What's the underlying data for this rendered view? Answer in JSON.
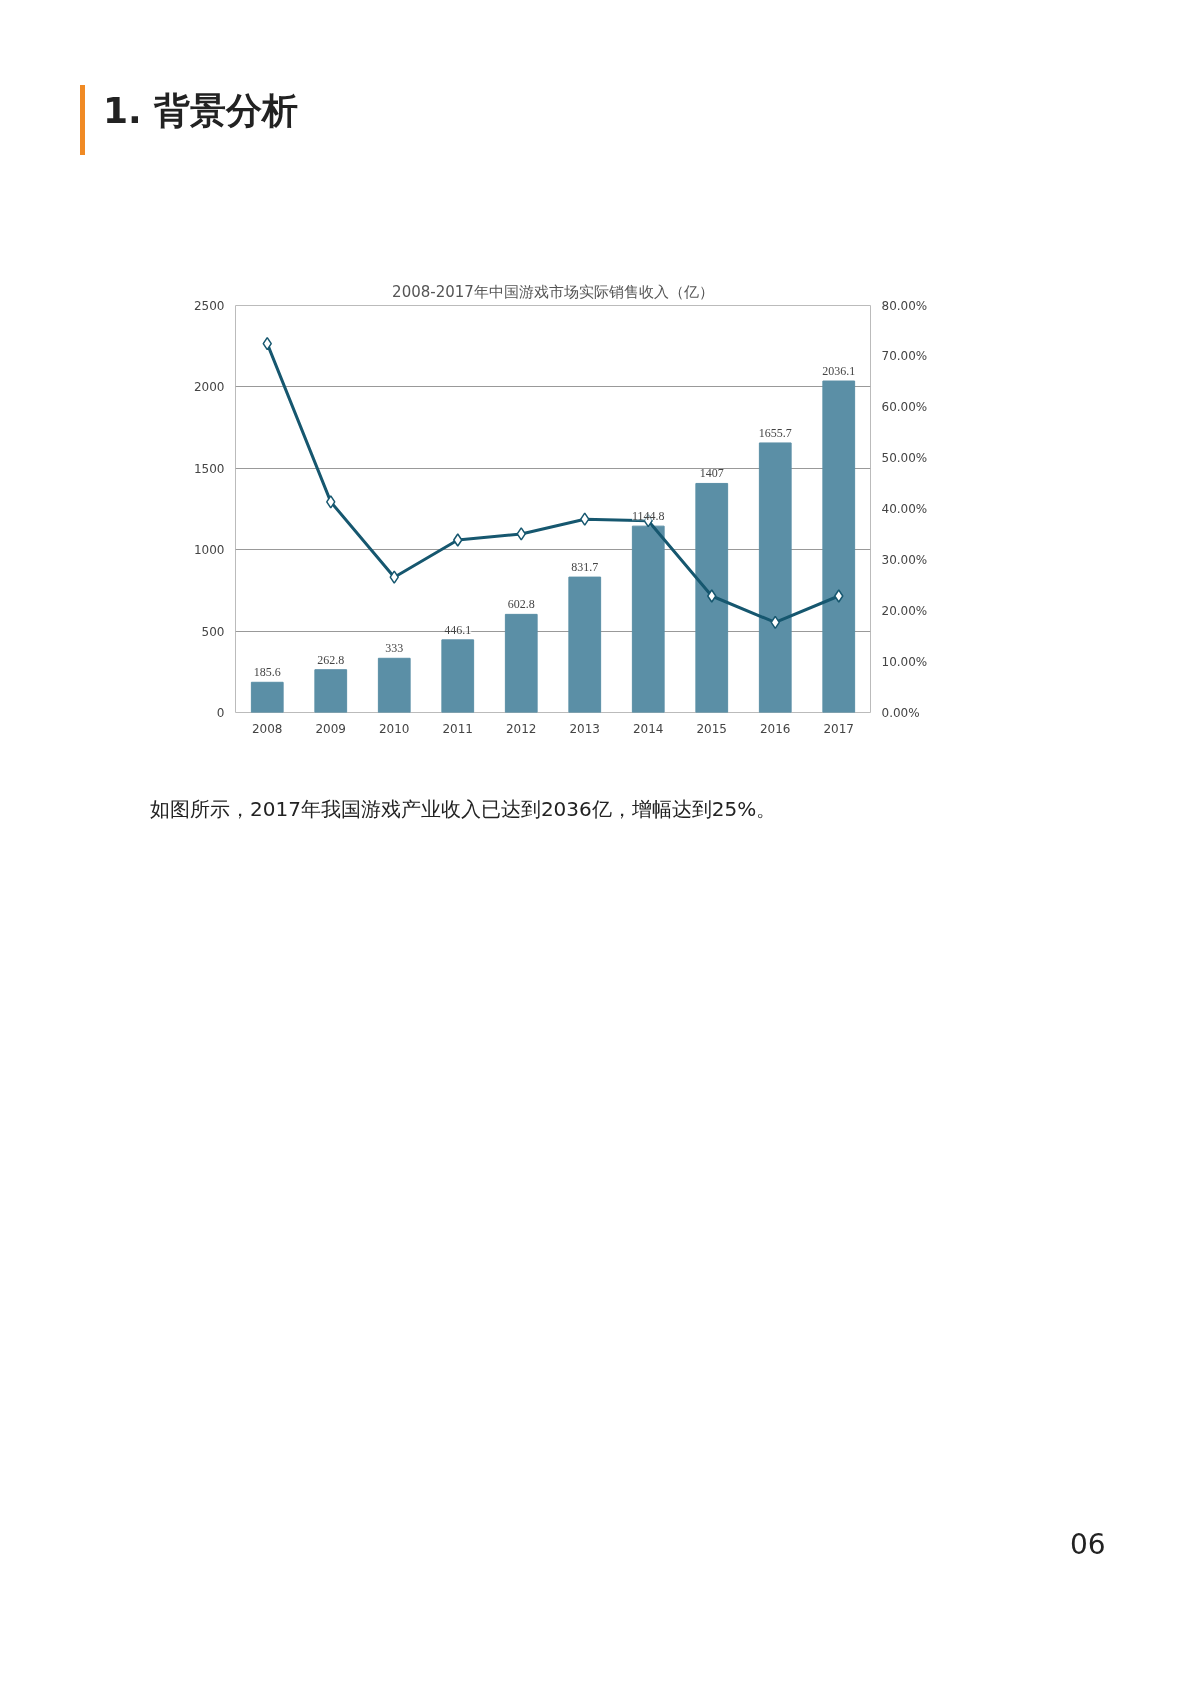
{
  "chart_data": {
    "type": "bar",
    "title": "2008-2017年中国游戏市场实际销售收入（亿）",
    "annotations": [
      "1. 背景分析",
      "如图所示，2017年我国游戏产业收入已达到2036亿，增幅达到25%。",
      "06"
    ],
    "categories": [
      "2008",
      "2009",
      "2010",
      "2011",
      "2012",
      "2013",
      "2014",
      "2015",
      "2016",
      "2017"
    ],
    "series": [
      {
        "color": "#5b8fa6",
        "values": [
          185.6,
          262.8,
          333,
          446.1,
          602.8,
          831.7,
          1144.8,
          1407,
          1655.7,
          2036.1
        ],
        "value_labels": [
          "185.6",
          "262.8",
          "333",
          "446.1",
          "602.8",
          "831.7",
          "1144.8",
          "1407",
          "1655.7",
          "2036.1"
        ]
      },
      {
        "type": "line",
        "axis": "y2",
        "color": "#16576f",
        "values": [
          72.5,
          41.4,
          26.6,
          33.9,
          35.1,
          38.0,
          37.7,
          22.9,
          17.7,
          22.9
        ]
      }
    ],
    "ylim": [
      0,
      2500
    ],
    "yticks": [
      0,
      500,
      1000,
      1500,
      2000,
      2500
    ],
    "y2lim": [
      0,
      80
    ],
    "y2ticks": [
      {
        "value": 0,
        "label": "0.00%"
      },
      {
        "value": 10,
        "label": "10.00%"
      },
      {
        "value": 20,
        "label": "20.00%"
      },
      {
        "value": 30,
        "label": "30.00%"
      },
      {
        "value": 40,
        "label": "40.00%"
      },
      {
        "value": 50,
        "label": "50.00%"
      },
      {
        "value": 60,
        "label": "60.00%"
      },
      {
        "value": 70,
        "label": "70.00%"
      },
      {
        "value": 80,
        "label": "80.00%"
      }
    ],
    "grid": "y",
    "marker": "diamond"
  }
}
